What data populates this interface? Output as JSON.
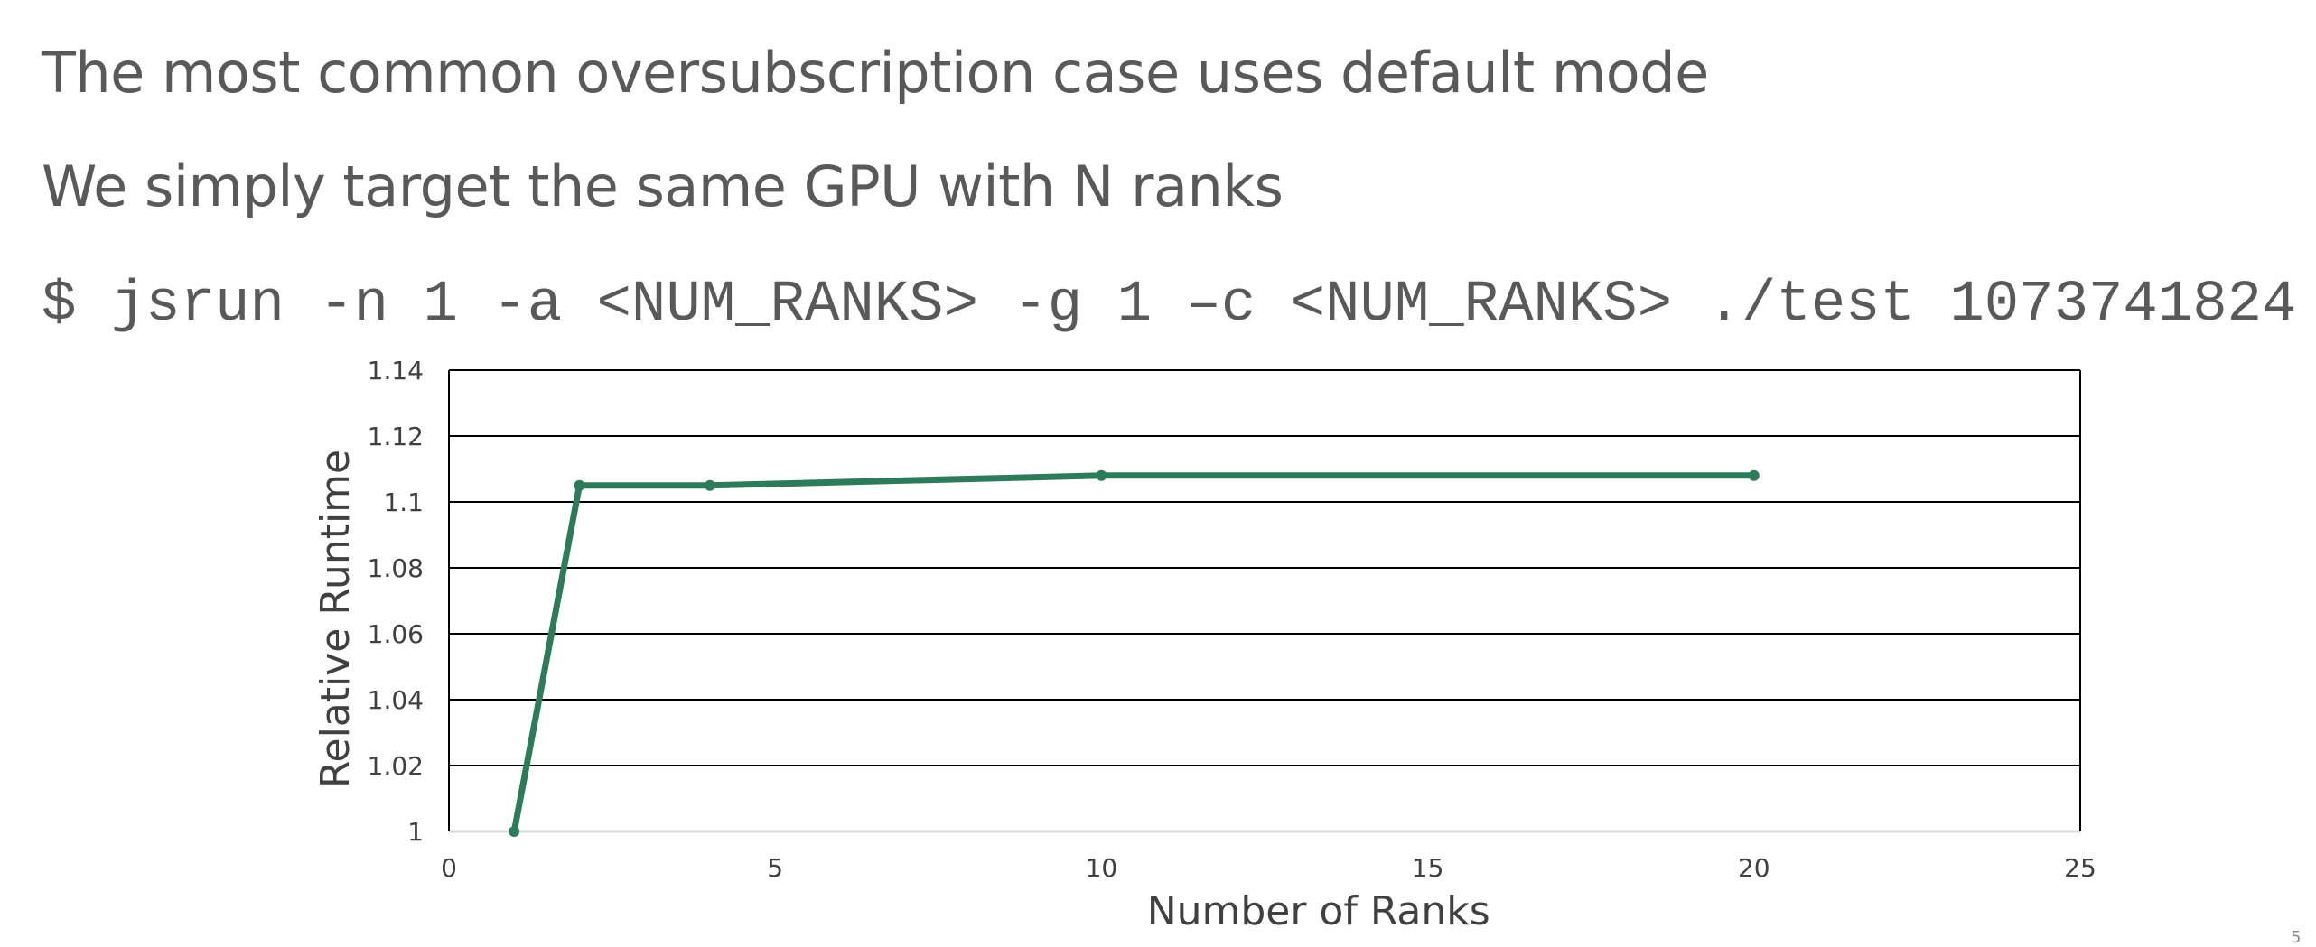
{
  "slide": {
    "line1": "The most common oversubscription case uses default mode",
    "line2": "We simply target the same GPU with N ranks",
    "command": "$ jsrun -n 1 -a <NUM_RANKS> -g 1 –c <NUM_RANKS> ./test 1073741824",
    "page_number": "5"
  },
  "chart_data": {
    "type": "line",
    "title": "",
    "xlabel": "Number of Ranks",
    "ylabel": "Relative Runtime",
    "xlim": [
      0,
      25
    ],
    "ylim": [
      1,
      1.14
    ],
    "xticks": [
      0,
      5,
      10,
      15,
      20,
      25
    ],
    "yticks": [
      1,
      1.02,
      1.04,
      1.06,
      1.08,
      1.1,
      1.12,
      1.14
    ],
    "ytick_labels": [
      "1",
      "1.02",
      "1.04",
      "1.06",
      "1.08",
      "1.1",
      "1.12",
      "1.14"
    ],
    "grid": true,
    "legend": "none",
    "series": [
      {
        "color": "#2E7B5C",
        "x": [
          1,
          2,
          4,
          10,
          20
        ],
        "y": [
          1.0,
          1.105,
          1.105,
          1.108,
          1.108
        ]
      }
    ]
  }
}
